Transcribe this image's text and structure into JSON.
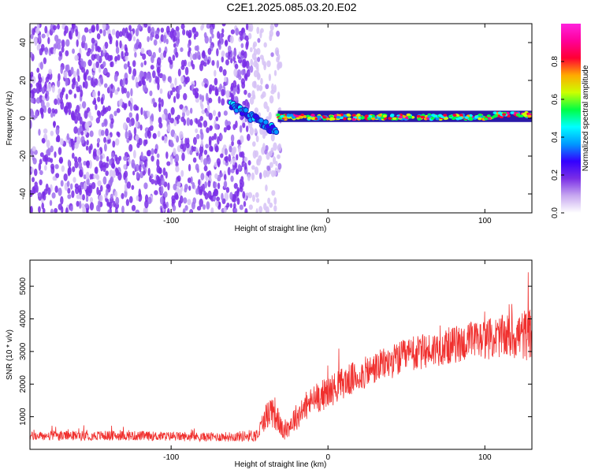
{
  "title": "C2E1.2025.085.03.20.E02",
  "colors": {
    "snr_line": "#f0302e",
    "background": "#ffffff",
    "colorscale": [
      "#ffffff",
      "#c7a8f0",
      "#7a2ee6",
      "#3300ff",
      "#0099ff",
      "#00ffff",
      "#00ff44",
      "#ccff00",
      "#ffaa00",
      "#ff0033",
      "#ff0099",
      "#ff22dd"
    ]
  },
  "chart_data": [
    {
      "type": "heatmap",
      "name": "spectrogram",
      "xlabel": "Height of straight line (km)",
      "ylabel": "Frequency (Hz)",
      "xlim": [
        -190,
        130
      ],
      "ylim": [
        -50,
        50
      ],
      "xticks": [
        -100,
        0,
        100
      ],
      "yticks": [
        -40,
        -20,
        0,
        20,
        40
      ],
      "colorbar": {
        "label": "Normalized spectral amplitude",
        "range": [
          0,
          1
        ],
        "ticks": [
          "0.0",
          "0.2",
          "0.4",
          "0.6",
          "0.8"
        ]
      },
      "regions": [
        {
          "x": [
            -190,
            -50
          ],
          "freq": [
            -50,
            50
          ],
          "amplitude": [
            0.05,
            0.18
          ],
          "pattern": "broadband noise"
        },
        {
          "x": [
            -50,
            -30
          ],
          "freq": [
            -50,
            50
          ],
          "amplitude": [
            0.02,
            0.08
          ],
          "pattern": "sparse noise"
        },
        {
          "x": [
            -62,
            -33
          ],
          "freq": [
            -8,
            8
          ],
          "amplitude": [
            0.25,
            0.45
          ],
          "pattern": "tone sweeping downward"
        },
        {
          "x": [
            -32,
            130
          ],
          "freq": [
            -1,
            3
          ],
          "amplitude": [
            0.35,
            0.9
          ],
          "pattern": "narrow tone near 0-2 Hz"
        }
      ]
    },
    {
      "type": "line",
      "name": "snr",
      "xlabel": "Height of straight line (km)",
      "ylabel": "SNR (10 * v/v)",
      "xlim": [
        -190,
        130
      ],
      "ylim": [
        0,
        5800
      ],
      "xticks": [
        -100,
        0,
        100
      ],
      "yticks": [
        1000,
        2000,
        3000,
        4000,
        5000
      ],
      "series": [
        {
          "x": [
            -190,
            -160,
            -130,
            -100,
            -80,
            -60,
            -45,
            -40,
            -35,
            -32,
            -28,
            -22,
            -10,
            0,
            10,
            20,
            35,
            50,
            70,
            90,
            110,
            125,
            130
          ],
          "y": [
            400,
            420,
            420,
            400,
            380,
            390,
            430,
            1000,
            1250,
            900,
            500,
            900,
            1500,
            1750,
            2050,
            2250,
            2600,
            2850,
            3100,
            3300,
            3450,
            3500,
            3550
          ],
          "noise": [
            140,
            150,
            150,
            140,
            140,
            150,
            200,
            400,
            600,
            400,
            250,
            400,
            450,
            500,
            500,
            500,
            500,
            550,
            550,
            600,
            650,
            800,
            800
          ]
        }
      ]
    }
  ]
}
